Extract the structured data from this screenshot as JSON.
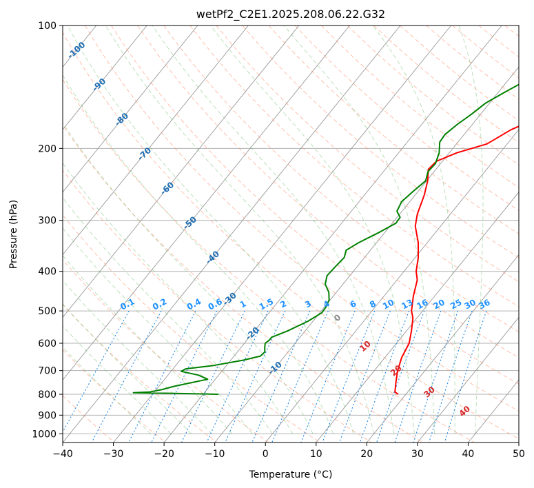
{
  "chart_data": {
    "type": "line",
    "title": "wetPf2_C2E1.2025.208.06.22.G32",
    "xlabel": "Temperature (°C)",
    "ylabel": "Pressure (hPa)",
    "xlim": [
      -40,
      50
    ],
    "ylim": [
      1050,
      100
    ],
    "y_scale": "log",
    "grid": true,
    "x_ticks": [
      -40,
      -30,
      -20,
      -10,
      0,
      10,
      20,
      30,
      40,
      50
    ],
    "y_ticks": [
      100,
      200,
      300,
      400,
      500,
      600,
      700,
      800,
      900,
      1000
    ],
    "series": [
      {
        "color": "#ff0000",
        "points": [
          {
            "p": 800,
            "t": 18.5
          },
          {
            "p": 790,
            "t": 17.5
          },
          {
            "p": 750,
            "t": 16.2
          },
          {
            "p": 700,
            "t": 14.6
          },
          {
            "p": 650,
            "t": 13.3
          },
          {
            "p": 600,
            "t": 12.5
          },
          {
            "p": 560,
            "t": 11.0
          },
          {
            "p": 520,
            "t": 9.2
          },
          {
            "p": 500,
            "t": 7.8
          },
          {
            "p": 460,
            "t": 5.8
          },
          {
            "p": 420,
            "t": 4.0
          },
          {
            "p": 400,
            "t": 2.4
          },
          {
            "p": 370,
            "t": 0.6
          },
          {
            "p": 340,
            "t": -1.8
          },
          {
            "p": 310,
            "t": -5.0
          },
          {
            "p": 290,
            "t": -6.5
          },
          {
            "p": 260,
            "t": -8.2
          },
          {
            "p": 240,
            "t": -9.8
          },
          {
            "p": 225,
            "t": -11.5
          },
          {
            "p": 215,
            "t": -11.2
          },
          {
            "p": 205,
            "t": -8.5
          },
          {
            "p": 195,
            "t": -4.0
          },
          {
            "p": 180,
            "t": -1.5
          },
          {
            "p": 165,
            "t": 3.0
          },
          {
            "p": 150,
            "t": 6.5
          },
          {
            "p": 135,
            "t": 10.5
          },
          {
            "p": 120,
            "t": 16.5
          },
          {
            "p": 110,
            "t": 20.5
          },
          {
            "p": 106,
            "t": 21.0
          },
          {
            "p": 100,
            "t": 21.0
          }
        ]
      },
      {
        "color": "#008000",
        "points": [
          {
            "p": 800,
            "t": -17.0
          },
          {
            "p": 797,
            "t": -23.0
          },
          {
            "p": 793,
            "t": -34.0
          },
          {
            "p": 790,
            "t": -31.0
          },
          {
            "p": 780,
            "t": -29.0
          },
          {
            "p": 765,
            "t": -27.0
          },
          {
            "p": 735,
            "t": -21.5
          },
          {
            "p": 718,
            "t": -24.0
          },
          {
            "p": 703,
            "t": -28.0
          },
          {
            "p": 693,
            "t": -27.5
          },
          {
            "p": 680,
            "t": -22.5
          },
          {
            "p": 660,
            "t": -17.5
          },
          {
            "p": 645,
            "t": -14.8
          },
          {
            "p": 630,
            "t": -14.6
          },
          {
            "p": 615,
            "t": -15.3
          },
          {
            "p": 600,
            "t": -15.9
          },
          {
            "p": 590,
            "t": -15.6
          },
          {
            "p": 580,
            "t": -15.6
          },
          {
            "p": 560,
            "t": -13.5
          },
          {
            "p": 530,
            "t": -11.0
          },
          {
            "p": 505,
            "t": -9.6
          },
          {
            "p": 490,
            "t": -9.7
          },
          {
            "p": 470,
            "t": -10.2
          },
          {
            "p": 450,
            "t": -11.5
          },
          {
            "p": 430,
            "t": -13.5
          },
          {
            "p": 410,
            "t": -14.5
          },
          {
            "p": 390,
            "t": -14.3
          },
          {
            "p": 370,
            "t": -14.0
          },
          {
            "p": 355,
            "t": -14.8
          },
          {
            "p": 340,
            "t": -13.5
          },
          {
            "p": 320,
            "t": -11.0
          },
          {
            "p": 305,
            "t": -9.3
          },
          {
            "p": 295,
            "t": -9.4
          },
          {
            "p": 285,
            "t": -11.0
          },
          {
            "p": 270,
            "t": -11.6
          },
          {
            "p": 255,
            "t": -11.0
          },
          {
            "p": 240,
            "t": -10.2
          },
          {
            "p": 228,
            "t": -11.2
          },
          {
            "p": 218,
            "t": -11.0
          },
          {
            "p": 205,
            "t": -12.0
          },
          {
            "p": 193,
            "t": -13.6
          },
          {
            "p": 185,
            "t": -13.8
          },
          {
            "p": 175,
            "t": -13.0
          },
          {
            "p": 165,
            "t": -11.8
          },
          {
            "p": 155,
            "t": -10.8
          },
          {
            "p": 145,
            "t": -8.6
          },
          {
            "p": 135,
            "t": -6.0
          },
          {
            "p": 125,
            "t": -5.2
          },
          {
            "p": 118,
            "t": -4.8
          },
          {
            "p": 112,
            "t": -6.0
          },
          {
            "p": 108,
            "t": -4.2
          },
          {
            "p": 104,
            "t": -0.2
          },
          {
            "p": 100,
            "t": 2.0
          }
        ]
      }
    ],
    "dry_adiabats": [
      -100,
      -90,
      -80,
      -70,
      -60,
      -50,
      -40,
      -30,
      -20,
      -10
    ],
    "moist_adiabats": [
      0,
      10,
      20,
      30,
      40
    ],
    "mixing_ratios": [
      "0.1",
      "0.2",
      "0.4",
      "0.6",
      "1",
      "1.5",
      "2",
      "3",
      "4",
      "6",
      "8",
      "10",
      "13",
      "16",
      "20",
      "25",
      "30",
      "36"
    ],
    "colors": {
      "temperature": "#ff0000",
      "dewpoint": "#008000",
      "isotherm": "#999999",
      "dry_adiabat": "#ff8a65",
      "moist_adiabat": "#66bb66",
      "mixing_ratio": "#1e88e5",
      "grid": "#b0b0b0"
    }
  }
}
